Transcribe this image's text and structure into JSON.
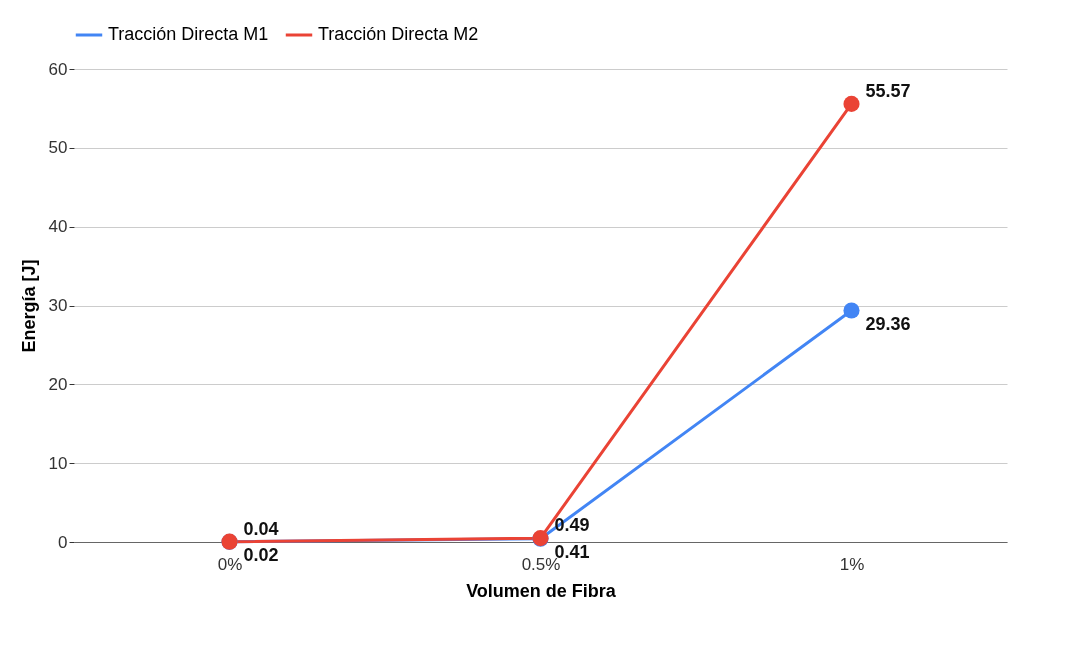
{
  "chart_data": {
    "type": "line",
    "xlabel": "Volumen de Fibra",
    "ylabel": "Energía [J]",
    "categories": [
      "0%",
      "0.5%",
      "1%"
    ],
    "series": [
      {
        "name": "Tracción Directa M1",
        "color": "#4285f4",
        "values": [
          0.02,
          0.41,
          29.36
        ]
      },
      {
        "name": "Tracción Directa M2",
        "color": "#ea4335",
        "values": [
          0.04,
          0.49,
          55.57
        ]
      }
    ],
    "ylim": [
      0,
      60
    ],
    "yticks": [
      0,
      10,
      20,
      30,
      40,
      50,
      60
    ],
    "grid": "y",
    "legend": "top",
    "marker": "circle",
    "data_labels": true
  }
}
